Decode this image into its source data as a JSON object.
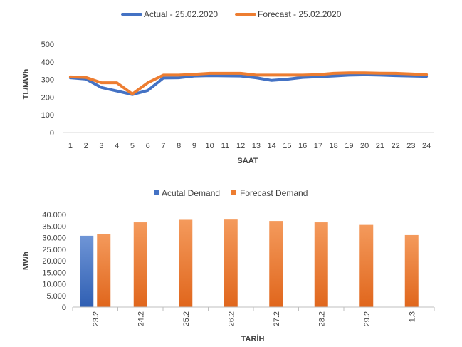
{
  "chart_data": [
    {
      "type": "line",
      "title": "",
      "xlabel": "SAAT",
      "ylabel": "TL/MWh",
      "ylim": [
        0,
        500
      ],
      "yticks": [
        0,
        100,
        200,
        300,
        400,
        500
      ],
      "x": [
        1,
        2,
        3,
        4,
        5,
        6,
        7,
        8,
        9,
        10,
        11,
        12,
        13,
        14,
        15,
        16,
        17,
        18,
        19,
        20,
        21,
        22,
        23,
        24
      ],
      "legend_position": "top",
      "series": [
        {
          "name": "Actual - 25.02.2020",
          "color": "#4472C4",
          "values": [
            310,
            303,
            255,
            235,
            215,
            238,
            309,
            310,
            320,
            322,
            321,
            320,
            310,
            295,
            302,
            312,
            316,
            320,
            325,
            327,
            325,
            322,
            320,
            318
          ]
        },
        {
          "name": "Forecast - 25.02.2020",
          "color": "#ED7D31",
          "values": [
            315,
            312,
            282,
            282,
            218,
            282,
            325,
            325,
            330,
            335,
            335,
            335,
            325,
            325,
            325,
            325,
            328,
            335,
            338,
            338,
            336,
            335,
            332,
            328
          ]
        }
      ]
    },
    {
      "type": "bar",
      "title": "",
      "xlabel": "TARİH",
      "ylabel": "MWh",
      "ylim": [
        0,
        40000
      ],
      "yticks": [
        "0",
        "5.000",
        "10.000",
        "15.000",
        "20.000",
        "25.000",
        "30.000",
        "35.000",
        "40.000"
      ],
      "ytick_values": [
        0,
        5000,
        10000,
        15000,
        20000,
        25000,
        30000,
        35000,
        40000
      ],
      "categories": [
        "23.2",
        "24.2",
        "25.2",
        "26.2",
        "27.2",
        "28.2",
        "29.2",
        "1.3"
      ],
      "legend_position": "top",
      "series": [
        {
          "name": "Acutal Demand",
          "color": "#4472C4",
          "values": [
            30800,
            null,
            null,
            null,
            null,
            null,
            null,
            null
          ]
        },
        {
          "name": "Forecast Demand",
          "color": "#ED7D31",
          "values": [
            31600,
            36600,
            37700,
            37800,
            37200,
            36600,
            35500,
            31100
          ]
        }
      ]
    }
  ]
}
